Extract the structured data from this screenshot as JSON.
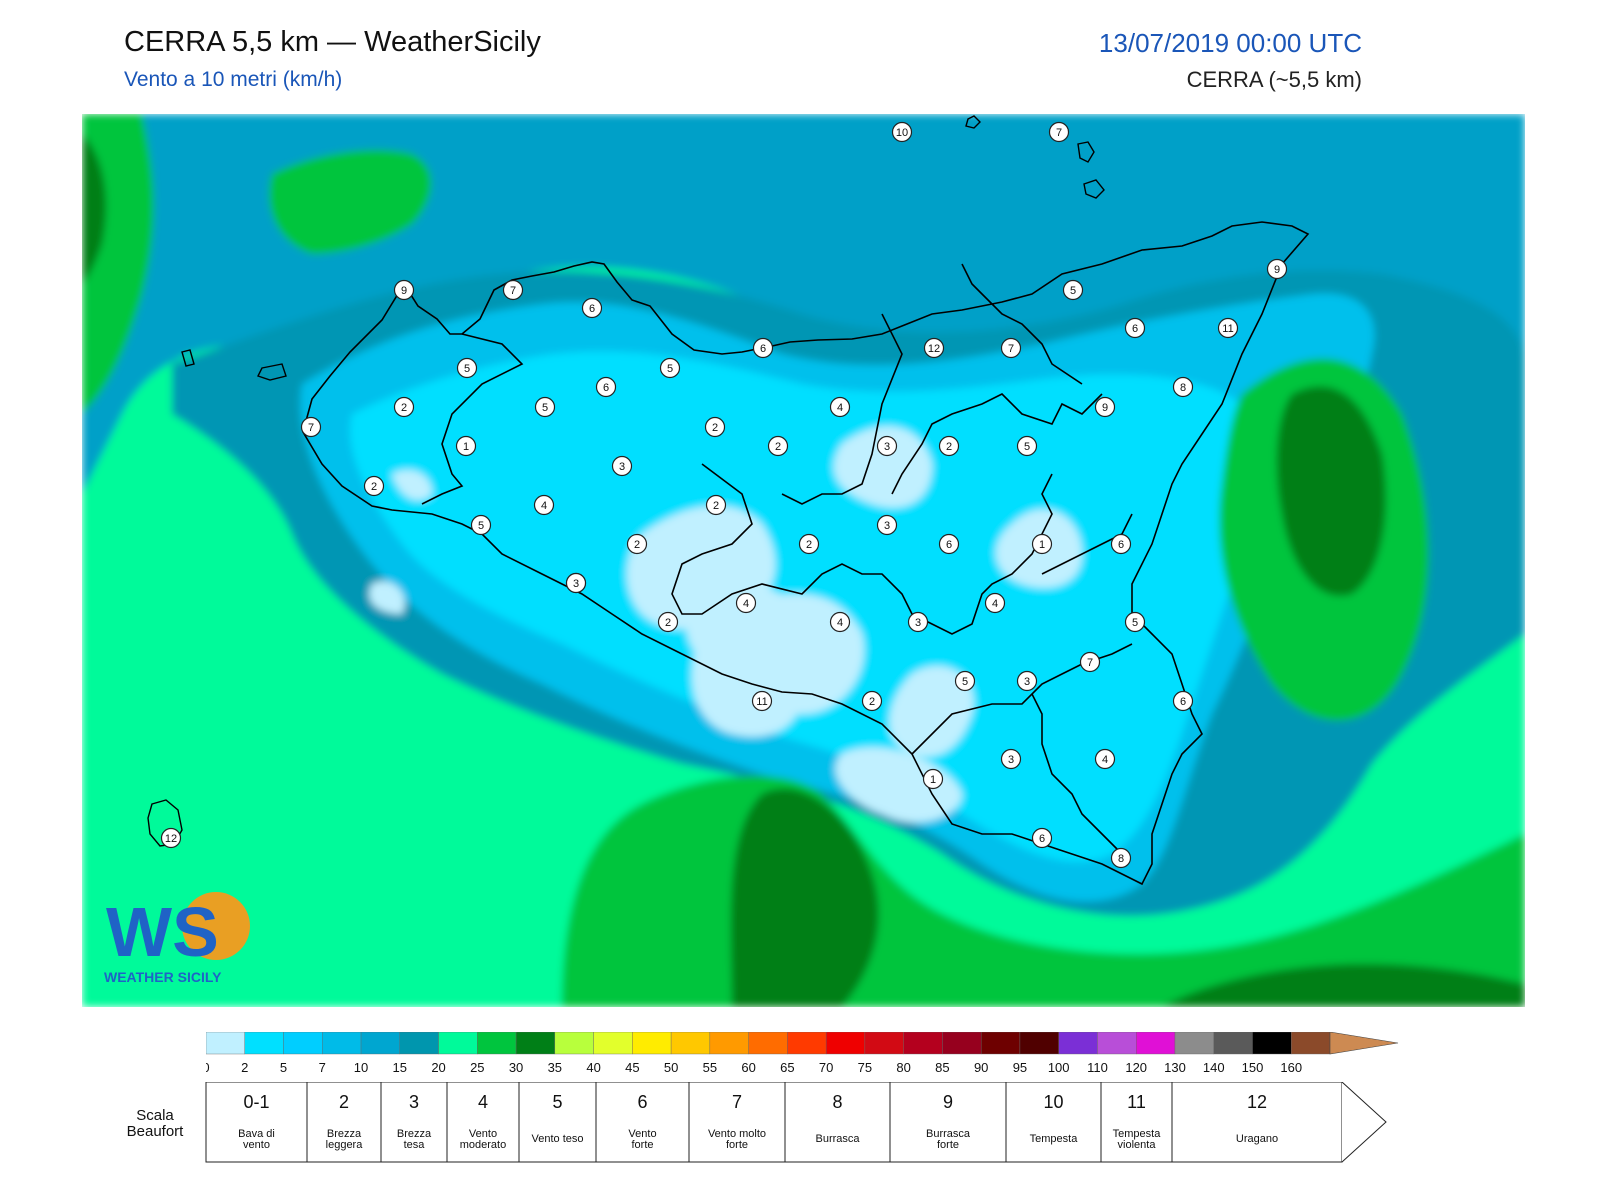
{
  "header": {
    "title": "CERRA 5,5 km — WeatherSicily",
    "subtitle": "Vento a 10 metri (km/h)",
    "datetime": "13/07/2019 00:00 UTC",
    "model": "CERRA (~5,5 km)"
  },
  "colors": {
    "ocean_far": "#00fa9a",
    "ocean_green": "#00c53e",
    "ocean_dark": "#007f17",
    "teal": "#00a0c8",
    "teal_dark": "#0096b4",
    "land_mid": "#00c0ec",
    "land_bright": "#00dfff",
    "land_light": "#c0f0ff"
  },
  "stations": [
    {
      "v": "10"
    },
    {
      "v": "7"
    },
    {
      "v": "9"
    },
    {
      "v": "7"
    },
    {
      "v": "6"
    },
    {
      "v": "9"
    },
    {
      "v": "5"
    },
    {
      "v": "6"
    },
    {
      "v": "7"
    },
    {
      "v": "12"
    },
    {
      "v": "5"
    },
    {
      "v": "6"
    },
    {
      "v": "11"
    },
    {
      "v": "7"
    },
    {
      "v": "2"
    },
    {
      "v": "5"
    },
    {
      "v": "6"
    },
    {
      "v": "8"
    },
    {
      "v": "5"
    },
    {
      "v": "4"
    },
    {
      "v": "9"
    },
    {
      "v": "1"
    },
    {
      "v": "2"
    },
    {
      "v": "2"
    },
    {
      "v": "3"
    },
    {
      "v": "2"
    },
    {
      "v": "5"
    },
    {
      "v": "3"
    },
    {
      "v": "2"
    },
    {
      "v": "3"
    },
    {
      "v": "4"
    },
    {
      "v": "2"
    },
    {
      "v": "5"
    },
    {
      "v": "3"
    },
    {
      "v": "6"
    },
    {
      "v": "1"
    },
    {
      "v": "6"
    },
    {
      "v": "2"
    },
    {
      "v": "2"
    },
    {
      "v": "3"
    },
    {
      "v": "4"
    },
    {
      "v": "4"
    },
    {
      "v": "4"
    },
    {
      "v": "5"
    },
    {
      "v": "3"
    },
    {
      "v": "2"
    },
    {
      "v": "7"
    },
    {
      "v": "11"
    },
    {
      "v": "2"
    },
    {
      "v": "5"
    },
    {
      "v": "3"
    },
    {
      "v": "6"
    },
    {
      "v": "1"
    },
    {
      "v": "3"
    },
    {
      "v": "4"
    },
    {
      "v": "6"
    },
    {
      "v": "8"
    },
    {
      "v": "12"
    }
  ],
  "logo": {
    "text": "WS",
    "name": "WEATHER SICILY"
  },
  "colorbar": {
    "ticks": [
      "0",
      "2",
      "5",
      "7",
      "10",
      "15",
      "20",
      "25",
      "30",
      "35",
      "40",
      "45",
      "50",
      "55",
      "60",
      "65",
      "70",
      "75",
      "80",
      "85",
      "90",
      "95",
      "100",
      "110",
      "120",
      "130",
      "140",
      "150",
      "160"
    ],
    "colors": [
      "#c0f0ff",
      "#00e0ff",
      "#00ceff",
      "#00bbe8",
      "#00a6d0",
      "#0096ae",
      "#00fa9a",
      "#00c53e",
      "#007f17",
      "#b8ff3c",
      "#e2ff2c",
      "#ffec00",
      "#ffc800",
      "#ff9a00",
      "#ff6c00",
      "#ff3a00",
      "#ef0000",
      "#d20a14",
      "#b4001e",
      "#96001e",
      "#6e0000",
      "#500000",
      "#7b2fd6",
      "#b84ed8",
      "#e010d6",
      "#8c8c8c",
      "#5a5a5a",
      "#000000",
      "#8b4a2a",
      "#cd8a52"
    ]
  },
  "beaufort": {
    "label": "Scala\nBeaufort",
    "cells": [
      {
        "num": "0-1",
        "desc": "Bava di\nvento"
      },
      {
        "num": "2",
        "desc": "Brezza\nleggera"
      },
      {
        "num": "3",
        "desc": "Brezza\ntesa"
      },
      {
        "num": "4",
        "desc": "Vento\nmoderato"
      },
      {
        "num": "5",
        "desc": "Vento teso"
      },
      {
        "num": "6",
        "desc": "Vento\nforte"
      },
      {
        "num": "7",
        "desc": "Vento molto\nforte"
      },
      {
        "num": "8",
        "desc": "Burrasca"
      },
      {
        "num": "9",
        "desc": "Burrasca\nforte"
      },
      {
        "num": "10",
        "desc": "Tempesta"
      },
      {
        "num": "11",
        "desc": "Tempesta\nviolenta"
      },
      {
        "num": "12",
        "desc": "Uragano"
      }
    ]
  }
}
